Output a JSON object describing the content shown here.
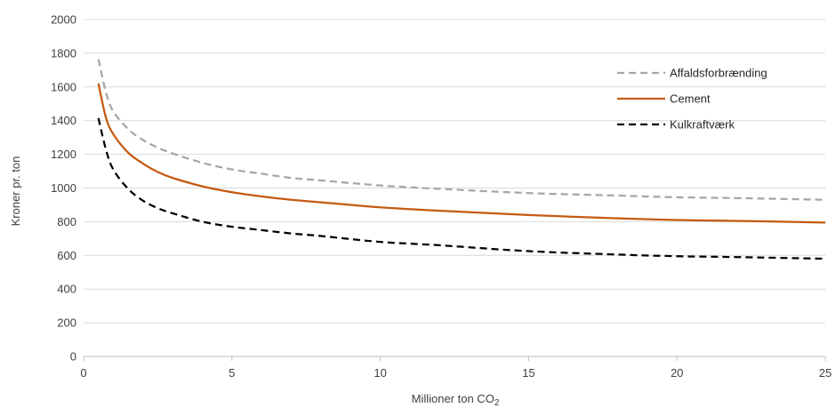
{
  "chart_data": {
    "type": "line",
    "title": "",
    "xlabel": "Millioner ton CO",
    "xlabel_subscript": "2",
    "ylabel": "Kroner pr. ton",
    "xlim": [
      0,
      25
    ],
    "ylim": [
      0,
      2000
    ],
    "xticks": [
      0,
      5,
      10,
      15,
      20,
      25
    ],
    "xtick_labels": [
      "0",
      "5",
      "10",
      "15",
      "20",
      "25"
    ],
    "yticks": [
      0,
      200,
      400,
      600,
      800,
      1000,
      1200,
      1400,
      1600,
      1800,
      2000
    ],
    "ytick_labels": [
      "0",
      "200",
      "400",
      "600",
      "800",
      "1000",
      "1200",
      "1400",
      "1600",
      "1800",
      "2000"
    ],
    "grid": "horizontal",
    "legend_position": "top-right",
    "x": [
      0.5,
      0.75,
      1,
      1.5,
      2,
      2.5,
      3,
      4,
      5,
      6,
      7,
      8,
      10,
      12,
      15,
      18,
      20,
      22,
      25
    ],
    "series": [
      {
        "name": "Affaldsforbrænding",
        "color": "#a6a6a6",
        "dash": "dashed",
        "values": [
          1765,
          1570,
          1455,
          1350,
          1285,
          1240,
          1205,
          1150,
          1110,
          1085,
          1060,
          1045,
          1015,
          995,
          970,
          955,
          945,
          940,
          930
        ]
      },
      {
        "name": "Cement",
        "color": "#c55a11",
        "dash": "solid",
        "values": [
          1620,
          1420,
          1320,
          1210,
          1145,
          1095,
          1060,
          1010,
          975,
          950,
          930,
          915,
          885,
          865,
          840,
          820,
          810,
          805,
          795
        ]
      },
      {
        "name": "Kulkraftværk",
        "color": "#000000",
        "dash": "dashed",
        "values": [
          1415,
          1230,
          1110,
          995,
          925,
          880,
          850,
          800,
          770,
          750,
          730,
          715,
          680,
          660,
          625,
          605,
          595,
          590,
          580
        ]
      }
    ]
  }
}
